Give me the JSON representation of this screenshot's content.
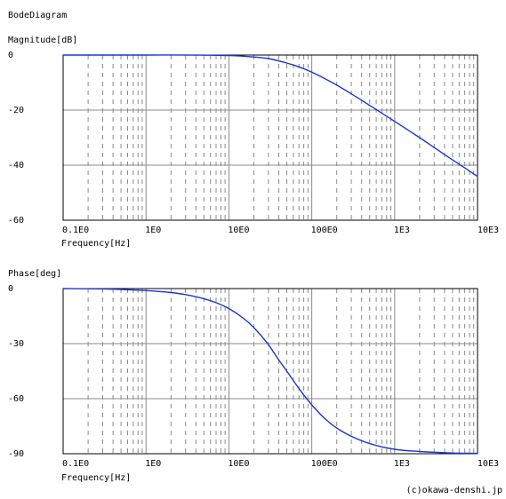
{
  "title": "BodeDiagram",
  "credit": "(c)okawa-denshi.jp",
  "chart_data": [
    {
      "type": "line",
      "ylabel": "Magnitude[dB]",
      "xlabel": "Frequency[Hz]",
      "x_scale": "log",
      "xlim": [
        0.1,
        10000
      ],
      "ylim": [
        -60,
        0
      ],
      "y_ticks": [
        0,
        -20,
        -40,
        -60
      ],
      "y_tick_labels": [
        "0",
        "-20",
        "-40",
        "-60"
      ],
      "x_ticks": [
        0.1,
        1,
        10,
        100,
        1000,
        10000
      ],
      "x_tick_labels": [
        "0.1E0",
        "1E0",
        "10E0",
        "100E0",
        "1E3",
        "10E3"
      ],
      "grid": true,
      "x": [
        0.1,
        1,
        10,
        20,
        30,
        50,
        70,
        100,
        200,
        300,
        500,
        1000,
        2000,
        3000,
        5000,
        7000,
        10000
      ],
      "y": [
        0,
        0,
        -0.2,
        -0.7,
        -1.3,
        -2.9,
        -4.3,
        -6.2,
        -10.9,
        -14.1,
        -18.3,
        -24.1,
        -30.0,
        -33.6,
        -38.1,
        -41.0,
        -44.1
      ]
    },
    {
      "type": "line",
      "ylabel": "Phase[deg]",
      "xlabel": "Frequency[Hz]",
      "x_scale": "log",
      "xlim": [
        0.1,
        10000
      ],
      "ylim": [
        -90,
        0
      ],
      "y_ticks": [
        0,
        -30,
        -60,
        -90
      ],
      "y_tick_labels": [
        "0",
        "-30",
        "-60",
        "-90"
      ],
      "x_ticks": [
        0.1,
        1,
        10,
        100,
        1000,
        10000
      ],
      "x_tick_labels": [
        "0.1E0",
        "1E0",
        "10E0",
        "100E0",
        "1E3",
        "10E3"
      ],
      "grid": true,
      "x": [
        0.1,
        0.3,
        1,
        2,
        3,
        5,
        7,
        10,
        15,
        20,
        30,
        40,
        50,
        70,
        100,
        150,
        200,
        300,
        500,
        1000,
        2000,
        5000,
        10000
      ],
      "y": [
        0,
        -0.2,
        -1.1,
        -2.2,
        -3.3,
        -5.5,
        -7.7,
        -10.9,
        -16.2,
        -21.3,
        -30.6,
        -38.9,
        -45.0,
        -54.5,
        -63.4,
        -71.6,
        -76.0,
        -80.5,
        -84.5,
        -87.6,
        -88.8,
        -89.6,
        -89.8
      ]
    }
  ]
}
